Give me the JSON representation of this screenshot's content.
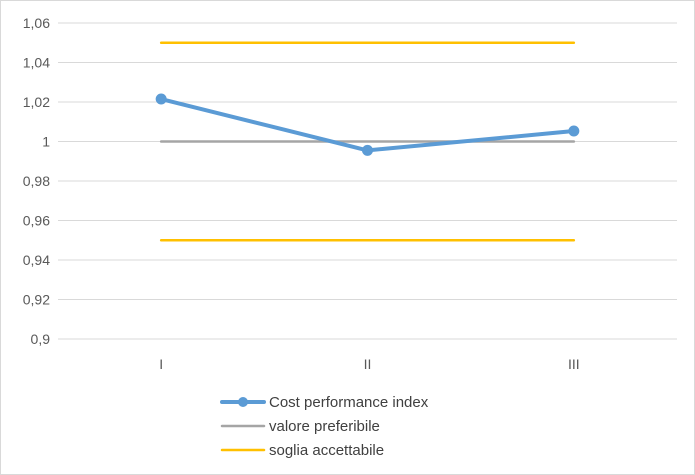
{
  "chart_data": {
    "type": "line",
    "title": "",
    "xlabel": "",
    "ylabel": "",
    "categories": [
      "I",
      "II",
      "III"
    ],
    "ylim": [
      0.9,
      1.06
    ],
    "yticks": [
      "0,9",
      "0,92",
      "0,94",
      "0,96",
      "0,98",
      "1",
      "1,02",
      "1,04",
      "1,06"
    ],
    "yticks_values": [
      0.9,
      0.92,
      0.94,
      0.96,
      0.98,
      1.0,
      1.02,
      1.04,
      1.06
    ],
    "grid": "horizontal",
    "legend_position": "bottom",
    "series": [
      {
        "name": "Cost performance index",
        "values": [
          1.0215,
          0.9955,
          1.0053
        ],
        "color": "#5b9bd5",
        "markers": true
      },
      {
        "name": "valore preferibile",
        "values": [
          1.0,
          1.0,
          1.0
        ],
        "color": "#a5a5a5",
        "markers": false
      },
      {
        "name": "soglia accettabile",
        "values": [
          1.05,
          1.05,
          1.05
        ],
        "color": "#ffc000",
        "markers": false
      },
      {
        "name": "soglia accettabile",
        "values": [
          0.95,
          0.95,
          0.95
        ],
        "color": "#ffc000",
        "markers": false,
        "legend": false
      }
    ]
  }
}
